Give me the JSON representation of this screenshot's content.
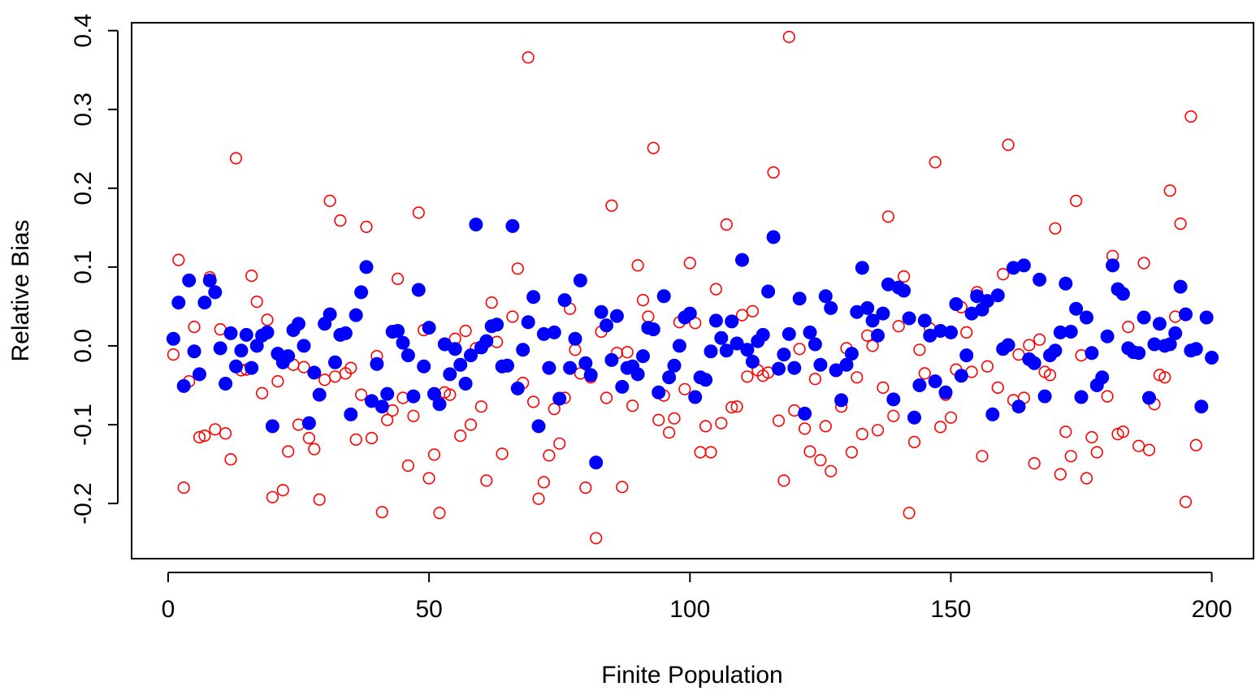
{
  "chart_data": {
    "type": "scatter",
    "title": "",
    "xlabel": "Finite Population",
    "ylabel": "Relative Bias",
    "xlim": [
      -7,
      208
    ],
    "ylim": [
      -0.27,
      0.41
    ],
    "grid": false,
    "legend": "none",
    "x_ticks": [
      0,
      50,
      100,
      150,
      200
    ],
    "x_tick_labels": [
      "0",
      "50",
      "100",
      "150",
      "200"
    ],
    "y_ticks": [
      -0.2,
      -0.1,
      0.0,
      0.1,
      0.2,
      0.3,
      0.4
    ],
    "y_tick_labels": [
      "-0.2",
      "-0.1",
      "0.0",
      "0.1",
      "0.2",
      "0.3",
      "0.4"
    ],
    "x": [
      1,
      2,
      3,
      4,
      5,
      6,
      7,
      8,
      9,
      10,
      11,
      12,
      13,
      14,
      15,
      16,
      17,
      18,
      19,
      20,
      21,
      22,
      23,
      24,
      25,
      26,
      27,
      28,
      29,
      30,
      31,
      32,
      33,
      34,
      35,
      36,
      37,
      38,
      39,
      40,
      41,
      42,
      43,
      44,
      45,
      46,
      47,
      48,
      49,
      50,
      51,
      52,
      53,
      54,
      55,
      56,
      57,
      58,
      59,
      60,
      61,
      62,
      63,
      64,
      65,
      66,
      67,
      68,
      69,
      70,
      71,
      72,
      73,
      74,
      75,
      76,
      77,
      78,
      79,
      80,
      81,
      82,
      83,
      84,
      85,
      86,
      87,
      88,
      89,
      90,
      91,
      92,
      93,
      94,
      95,
      96,
      97,
      98,
      99,
      100,
      101,
      102,
      103,
      104,
      105,
      106,
      107,
      108,
      109,
      110,
      111,
      112,
      113,
      114,
      115,
      116,
      117,
      118,
      119,
      120,
      121,
      122,
      123,
      124,
      125,
      126,
      127,
      128,
      129,
      130,
      131,
      132,
      133,
      134,
      135,
      136,
      137,
      138,
      139,
      140,
      141,
      142,
      143,
      144,
      145,
      146,
      147,
      148,
      149,
      150,
      151,
      152,
      153,
      154,
      155,
      156,
      157,
      158,
      159,
      160,
      161,
      162,
      163,
      164,
      165,
      166,
      167,
      168,
      169,
      170,
      171,
      172,
      173,
      174,
      175,
      176,
      177,
      178,
      179,
      180,
      181,
      182,
      183,
      184,
      185,
      186,
      187,
      188,
      189,
      190,
      191,
      192,
      193,
      194,
      195,
      196,
      197,
      198,
      199,
      200
    ],
    "series": [
      {
        "marker": "filled-circle",
        "color": "#0000ff",
        "values": [
          0.009,
          0.055,
          -0.051,
          0.083,
          -0.007,
          -0.036,
          0.055,
          0.083,
          0.068,
          -0.003,
          -0.048,
          0.016,
          -0.026,
          -0.006,
          0.014,
          -0.028,
          0.0,
          0.013,
          0.017,
          -0.102,
          -0.01,
          -0.021,
          -0.013,
          0.02,
          0.028,
          0.0,
          -0.098,
          -0.034,
          -0.062,
          0.028,
          0.04,
          -0.021,
          0.014,
          0.016,
          -0.087,
          0.039,
          0.068,
          0.1,
          -0.07,
          -0.023,
          -0.077,
          -0.061,
          0.018,
          0.019,
          0.004,
          -0.012,
          -0.064,
          0.071,
          -0.026,
          0.023,
          -0.061,
          -0.074,
          0.002,
          -0.036,
          -0.004,
          -0.024,
          -0.048,
          -0.012,
          0.154,
          -0.002,
          0.006,
          0.025,
          0.027,
          -0.026,
          -0.025,
          0.152,
          -0.054,
          -0.005,
          0.03,
          0.062,
          -0.102,
          0.015,
          -0.028,
          0.017,
          -0.067,
          0.058,
          -0.028,
          0.009,
          0.083,
          -0.022,
          -0.037,
          -0.148,
          0.043,
          0.026,
          -0.018,
          0.038,
          -0.052,
          -0.028,
          -0.026,
          -0.036,
          -0.013,
          0.023,
          0.021,
          -0.059,
          0.063,
          -0.04,
          -0.025,
          0.0,
          0.036,
          0.041,
          -0.065,
          -0.04,
          -0.043,
          -0.007,
          0.032,
          0.01,
          -0.006,
          0.031,
          0.003,
          0.109,
          -0.005,
          -0.02,
          0.006,
          0.014,
          0.069,
          0.138,
          -0.029,
          -0.011,
          0.015,
          -0.028,
          0.06,
          -0.086,
          0.017,
          0.002,
          -0.024,
          0.063,
          0.048,
          -0.031,
          -0.069,
          -0.024,
          -0.01,
          0.043,
          0.099,
          0.048,
          0.032,
          0.013,
          0.041,
          0.078,
          -0.068,
          0.074,
          0.07,
          0.035,
          -0.091,
          -0.05,
          0.032,
          0.013,
          -0.045,
          0.019,
          -0.059,
          0.017,
          0.053,
          -0.038,
          -0.012,
          0.041,
          0.063,
          0.046,
          0.057,
          -0.087,
          0.064,
          -0.004,
          0.001,
          0.099,
          -0.077,
          0.102,
          -0.017,
          -0.022,
          0.084,
          -0.064,
          -0.012,
          -0.006,
          0.017,
          0.079,
          0.018,
          0.047,
          -0.065,
          0.036,
          -0.009,
          -0.05,
          -0.04,
          0.012,
          0.102,
          0.072,
          0.066,
          -0.003,
          -0.008,
          -0.009,
          0.036,
          -0.066,
          0.002,
          0.028,
          0.0,
          0.002,
          0.016,
          0.075,
          0.04,
          -0.006,
          -0.004,
          -0.077,
          0.036,
          -0.015
        ]
      },
      {
        "marker": "open-circle",
        "color": "#ff0000",
        "values": [
          -0.011,
          0.109,
          -0.18,
          -0.045,
          0.024,
          -0.116,
          -0.114,
          0.087,
          -0.106,
          0.021,
          -0.111,
          -0.144,
          0.238,
          -0.031,
          -0.03,
          0.089,
          0.056,
          -0.06,
          0.033,
          -0.192,
          -0.045,
          -0.183,
          -0.134,
          -0.024,
          -0.1,
          -0.027,
          -0.117,
          -0.131,
          -0.195,
          -0.043,
          0.184,
          -0.039,
          0.159,
          -0.035,
          -0.028,
          -0.119,
          -0.062,
          0.151,
          -0.117,
          -0.013,
          -0.211,
          -0.094,
          -0.082,
          0.085,
          -0.066,
          -0.152,
          -0.089,
          0.169,
          0.02,
          -0.168,
          -0.138,
          -0.212,
          -0.059,
          -0.062,
          0.009,
          -0.114,
          0.019,
          -0.1,
          -0.003,
          -0.077,
          -0.171,
          0.055,
          0.005,
          -0.137,
          -0.026,
          0.037,
          0.098,
          -0.047,
          0.366,
          -0.071,
          -0.194,
          -0.173,
          -0.139,
          -0.08,
          -0.124,
          -0.066,
          0.047,
          -0.005,
          -0.035,
          -0.18,
          -0.04,
          -0.244,
          0.018,
          -0.066,
          0.178,
          -0.009,
          -0.179,
          -0.008,
          -0.076,
          0.102,
          0.058,
          0.037,
          0.251,
          -0.094,
          -0.063,
          -0.11,
          -0.092,
          0.03,
          -0.055,
          0.105,
          0.029,
          -0.135,
          -0.102,
          -0.135,
          0.072,
          -0.098,
          0.154,
          -0.078,
          -0.077,
          0.039,
          -0.039,
          0.044,
          -0.031,
          -0.038,
          -0.034,
          0.22,
          -0.095,
          -0.171,
          0.392,
          -0.082,
          -0.004,
          -0.105,
          -0.134,
          -0.042,
          -0.145,
          -0.102,
          -0.159,
          -0.03,
          -0.077,
          -0.003,
          -0.135,
          -0.04,
          -0.112,
          0.013,
          0.0,
          -0.107,
          -0.053,
          0.164,
          -0.089,
          0.025,
          0.088,
          -0.212,
          -0.122,
          -0.005,
          -0.035,
          0.022,
          0.233,
          -0.103,
          -0.062,
          -0.091,
          -0.03,
          0.049,
          0.017,
          -0.033,
          0.068,
          -0.14,
          -0.026,
          -0.086,
          -0.053,
          0.091,
          0.255,
          -0.069,
          -0.011,
          -0.066,
          0.001,
          -0.149,
          0.008,
          -0.033,
          -0.037,
          0.149,
          -0.163,
          -0.109,
          -0.14,
          0.184,
          -0.012,
          -0.168,
          -0.116,
          -0.135,
          -0.041,
          -0.064,
          0.114,
          -0.112,
          -0.109,
          0.024,
          -0.008,
          -0.127,
          0.105,
          -0.132,
          -0.074,
          -0.037,
          -0.04,
          0.197,
          0.037,
          0.155,
          -0.198,
          0.291,
          -0.126
        ]
      }
    ]
  }
}
